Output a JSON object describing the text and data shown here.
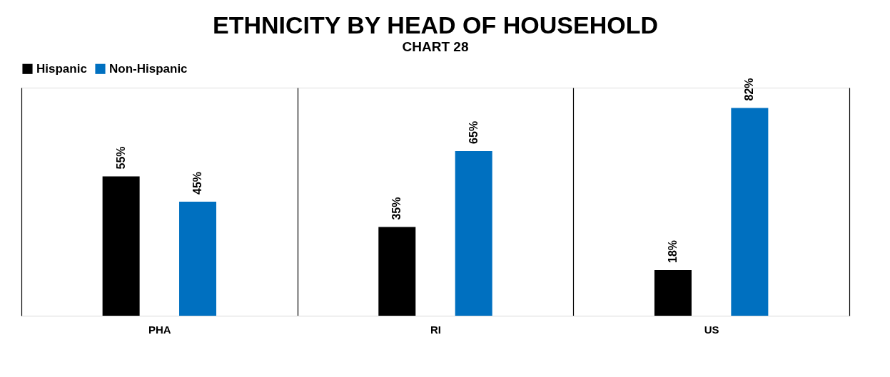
{
  "chart_data": {
    "type": "bar",
    "title": "ETHNICITY BY HEAD OF HOUSEHOLD",
    "subtitle": "CHART 28",
    "categories": [
      "PHA",
      "RI",
      "US"
    ],
    "series": [
      {
        "name": "Hispanic",
        "color": "#000000",
        "values": [
          55,
          35,
          18
        ],
        "value_labels": [
          "55%",
          "35%",
          "18%"
        ]
      },
      {
        "name": "Non-Hispanic",
        "color": "#0070c0",
        "values": [
          45,
          65,
          82
        ],
        "value_labels": [
          "45%",
          "65%",
          "82%"
        ]
      }
    ],
    "legend": "top",
    "grid": "x"
  }
}
